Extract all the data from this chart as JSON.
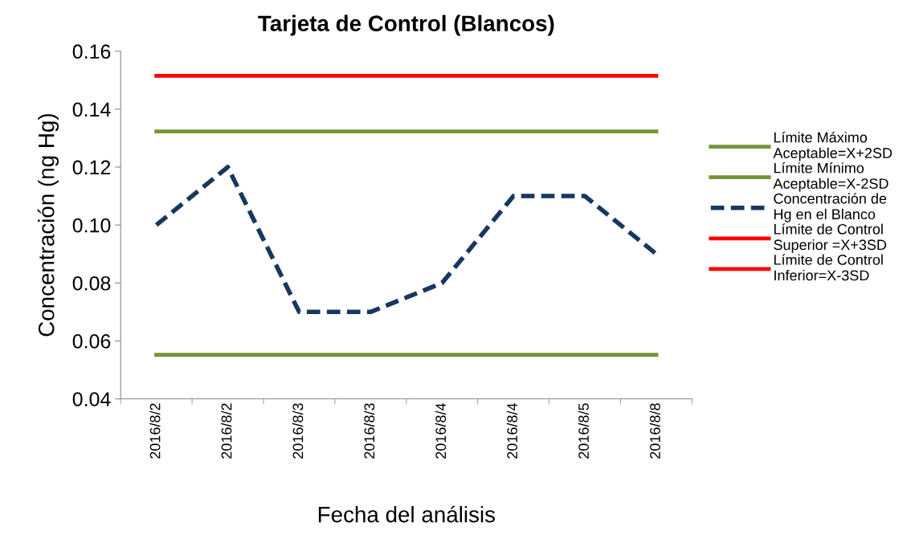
{
  "chart_data": {
    "type": "line",
    "title": "Tarjeta de Control (Blancos)",
    "xlabel": "Fecha del análisis",
    "ylabel": "Concentración (ng Hg)",
    "categories": [
      "2016/8/2",
      "2016/8/2",
      "2016/8/3",
      "2016/8/3",
      "2016/8/4",
      "2016/8/4",
      "2016/8/5",
      "2016/8/8"
    ],
    "series": [
      {
        "name": "Límite Máximo\nAceptable=X+2SD",
        "color": "#77933c",
        "values": [
          0.1323,
          0.1323,
          0.1323,
          0.1323,
          0.1323,
          0.1323,
          0.1323,
          0.1323
        ]
      },
      {
        "name": "Límite Mínimo\nAceptable=X-2SD",
        "color": "#77933c",
        "values": [
          0.0552,
          0.0552,
          0.0552,
          0.0552,
          0.0552,
          0.0552,
          0.0552,
          0.0552
        ]
      },
      {
        "name": "Concentración de\nHg en el Blanco",
        "color": "#17375e",
        "line_style": "dashed",
        "values": [
          0.1,
          0.12,
          0.07,
          0.07,
          0.08,
          0.11,
          0.11,
          0.09
        ]
      },
      {
        "name": "Límite de Control\nSuperior =X+3SD",
        "color": "#ff0000",
        "values": [
          0.1515,
          0.1515,
          0.1515,
          0.1515,
          0.1515,
          0.1515,
          0.1515,
          0.1515
        ]
      },
      {
        "name": "Límite de Control\nInferior=X-3SD",
        "color": "#ff0000",
        "values": [
          null,
          null,
          null,
          null,
          null,
          null,
          null,
          null
        ]
      }
    ],
    "ylim": [
      0.04,
      0.16
    ],
    "yticks": [
      {
        "value": 0.04,
        "label": "0.04"
      },
      {
        "value": 0.06,
        "label": "0.06"
      },
      {
        "value": 0.08,
        "label": "0.08"
      },
      {
        "value": 0.1,
        "label": "0.10"
      },
      {
        "value": 0.12,
        "label": "0.12"
      },
      {
        "value": 0.14,
        "label": "0.14"
      },
      {
        "value": 0.16,
        "label": "0.16"
      }
    ],
    "grid": false,
    "legend": "right",
    "marker": "none",
    "line_style": "solid"
  }
}
